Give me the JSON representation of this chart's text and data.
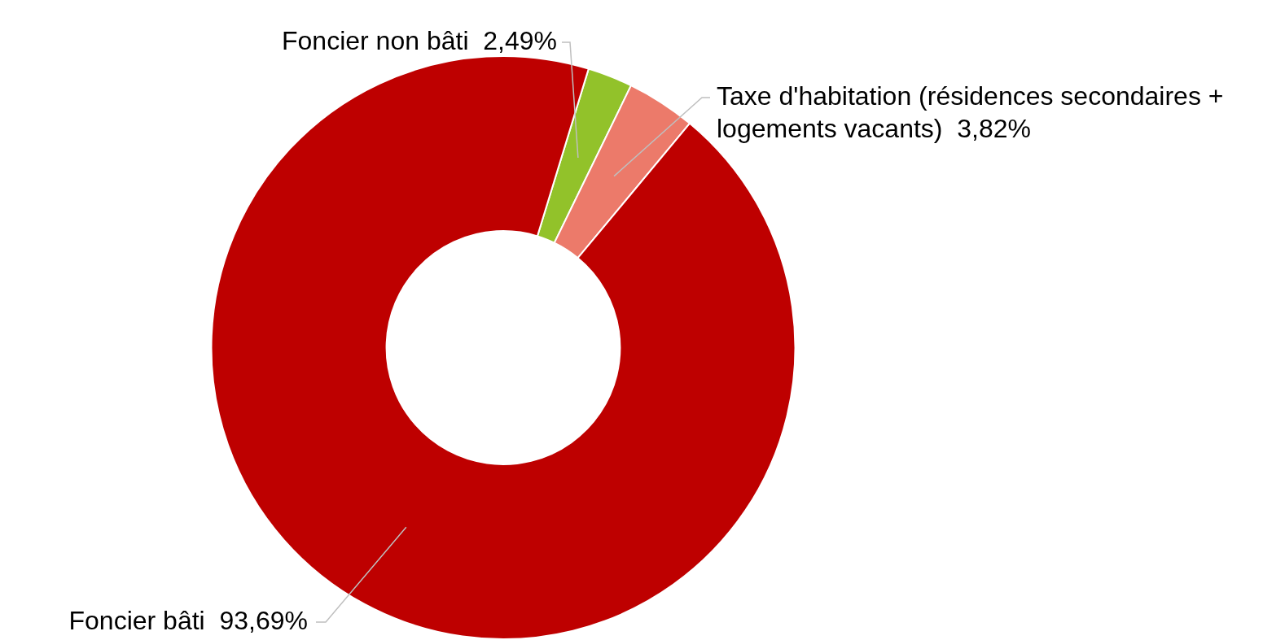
{
  "chart_data": {
    "type": "donut",
    "categories": [
      "Foncier non bâti",
      "Taxe d'habitation (résidences secondaires + logements vacants)",
      "Foncier bâti"
    ],
    "values": [
      2.49,
      3.82,
      93.69
    ],
    "colors": [
      "#92c22a",
      "#ec7a6a",
      "#be0000"
    ],
    "value_labels": [
      "2,49%",
      "3,82%",
      "93,69%"
    ],
    "legend": false
  }
}
